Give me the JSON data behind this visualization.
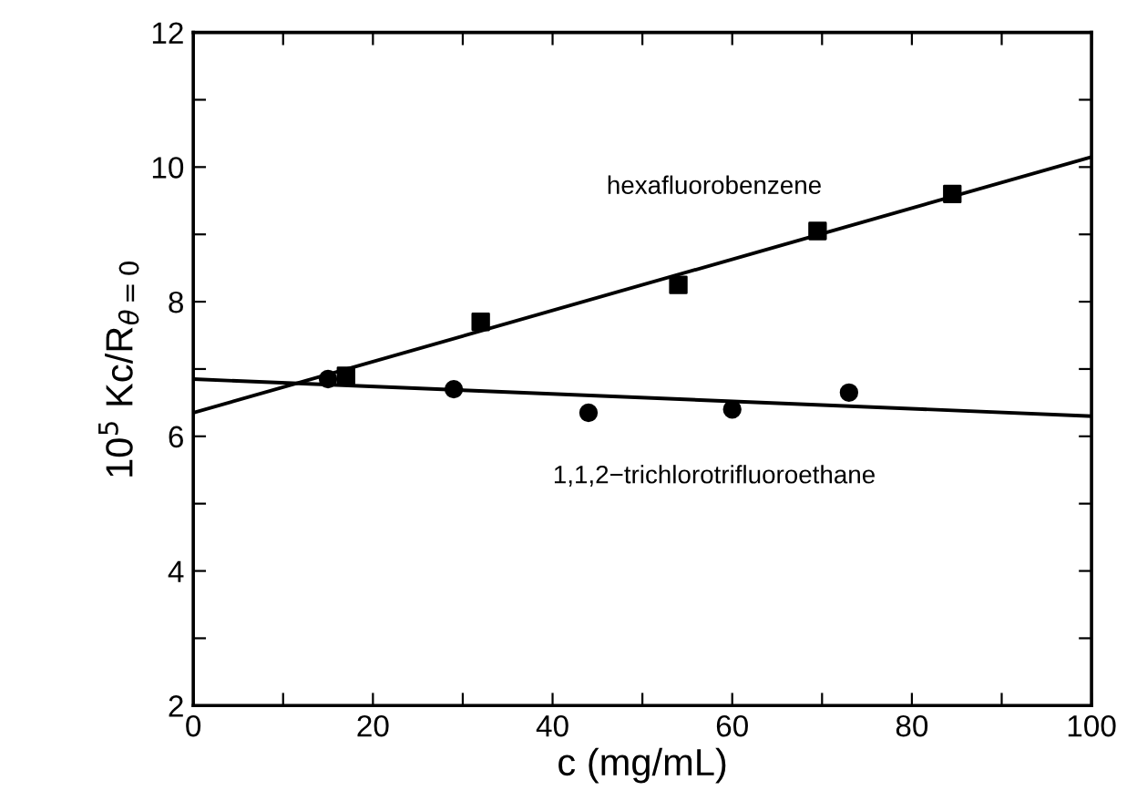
{
  "chart_data": {
    "type": "scatter",
    "xlabel": "c (mg/mL)",
    "ylabel": "10$^{5}$ Kc/R$_{θ=0}$",
    "xlim": [
      0,
      100
    ],
    "ylim": [
      2,
      12
    ],
    "xticks": [
      0,
      {
        "value": 10,
        "label": null
      },
      20,
      {
        "value": 30,
        "label": null
      },
      40,
      {
        "value": 50,
        "label": null
      },
      60,
      {
        "value": 70,
        "label": null
      },
      80,
      {
        "value": 90,
        "label": null
      },
      100
    ],
    "yticks": [
      2,
      {
        "value": 3,
        "label": null
      },
      4,
      {
        "value": 5,
        "label": null
      },
      6,
      {
        "value": 7,
        "label": null
      },
      8,
      {
        "value": 9,
        "label": null
      },
      10,
      {
        "value": 11,
        "label": null
      },
      12
    ],
    "grid": false,
    "series": [
      {
        "color": "#000000",
        "marker": "square",
        "x": [
          17,
          32,
          54,
          69.5,
          84.5
        ],
        "values": [
          6.9,
          7.7,
          8.25,
          9.05,
          9.6
        ]
      },
      {
        "color": "#000000",
        "marker": "circle",
        "x": [
          15,
          29,
          44,
          60,
          73
        ],
        "values": [
          6.85,
          6.7,
          6.35,
          6.4,
          6.65
        ]
      },
      {
        "type": "line",
        "color": "#000000",
        "marker": "none",
        "x": [
          0,
          100
        ],
        "values": [
          6.35,
          10.15
        ]
      },
      {
        "type": "line",
        "color": "#000000",
        "marker": "none",
        "x": [
          0,
          100
        ],
        "values": [
          6.85,
          6.3
        ]
      }
    ],
    "annotations": [
      "hexafluorobenzene",
      "1,1,2−trichlorotrifluoroethane"
    ]
  }
}
